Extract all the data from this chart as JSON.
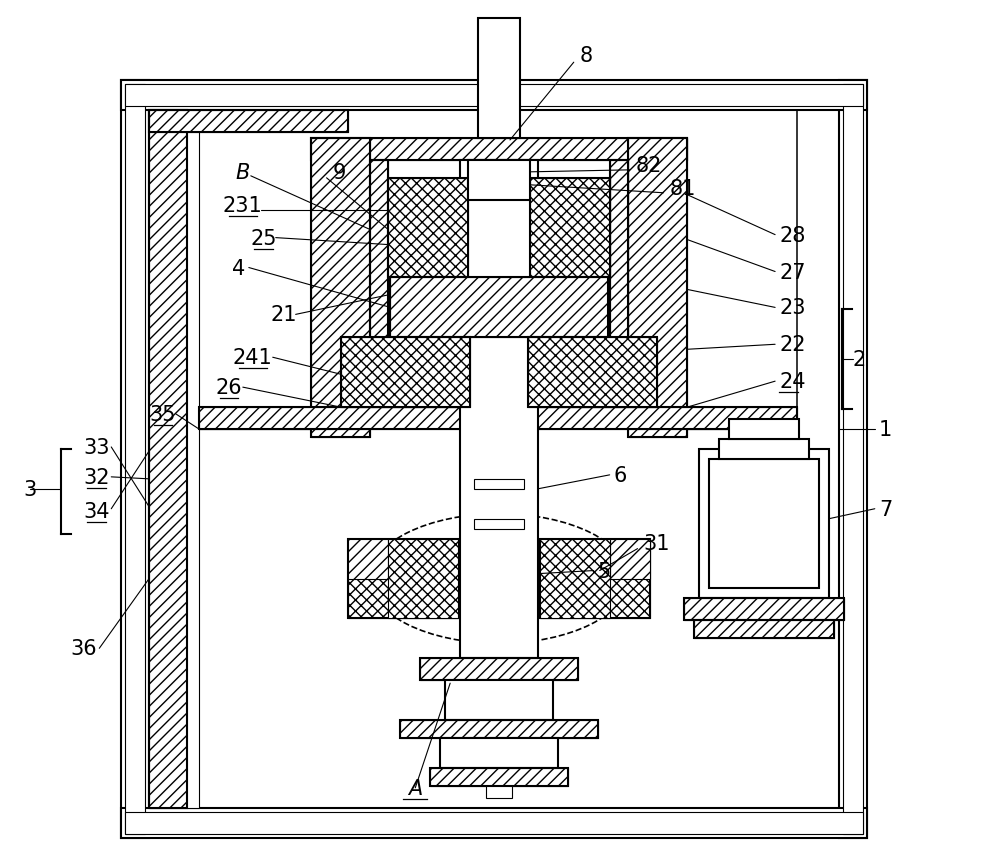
{
  "bg_color": "#ffffff",
  "line_color": "#000000",
  "figsize": [
    10.0,
    8.62
  ],
  "dpi": 100
}
